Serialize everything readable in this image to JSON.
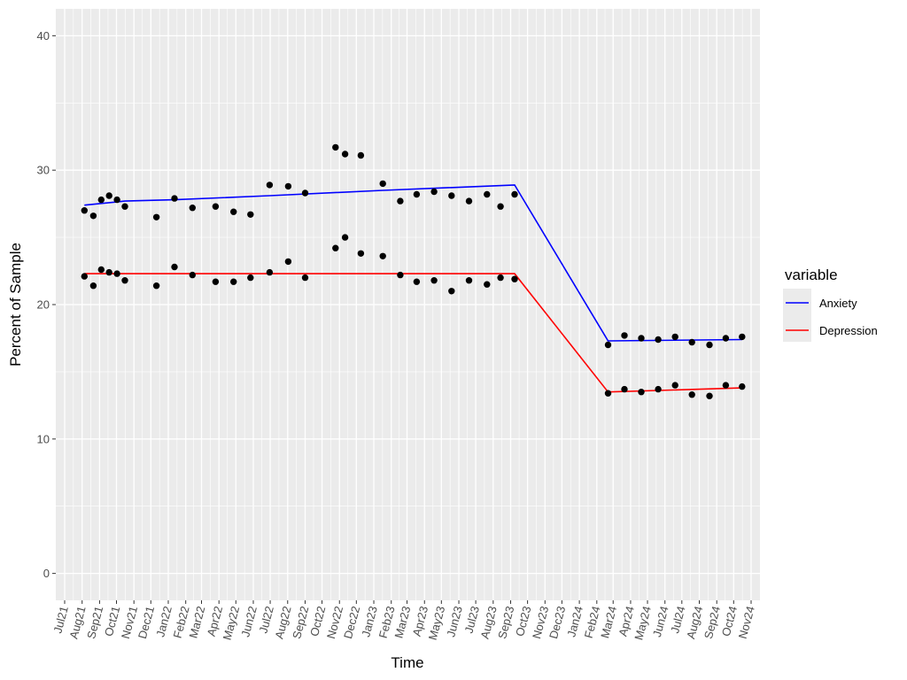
{
  "chart_data": {
    "type": "line",
    "xlabel": "Time",
    "ylabel": "Percent of Sample",
    "ylim": [
      -2,
      42
    ],
    "yticks": [
      0,
      10,
      20,
      30,
      40
    ],
    "x_tick_labels": [
      "Jul21",
      "Aug21",
      "Sep21",
      "Oct21",
      "Nov21",
      "Dec21",
      "Jan22",
      "Feb22",
      "Mar22",
      "Apr22",
      "May22",
      "Jun22",
      "Jul22",
      "Aug22",
      "Sep22",
      "Oct22",
      "Nov22",
      "Dec22",
      "Jan23",
      "Feb23",
      "Mar23",
      "Apr23",
      "May23",
      "Jun23",
      "Jul23",
      "Aug23",
      "Sep23",
      "Oct23",
      "Nov23",
      "Dec23",
      "Jan24",
      "Feb24",
      "Mar24",
      "Apr24",
      "May24",
      "Jun24",
      "Jul24",
      "Aug24",
      "Sep24",
      "Oct24",
      "Nov24"
    ],
    "grid": true,
    "legend": {
      "title": "variable",
      "placement": "right",
      "entries": [
        {
          "name": "Anxiety",
          "color": "#0000ff"
        },
        {
          "name": "Depression",
          "color": "#ff0000"
        }
      ]
    },
    "point_color": "#000000",
    "series": [
      {
        "name": "Anxiety",
        "color": "#0000ff",
        "points": [
          {
            "x": "2021-08-05",
            "y": 27.0
          },
          {
            "x": "2021-08-21",
            "y": 26.6
          },
          {
            "x": "2021-09-04",
            "y": 27.8
          },
          {
            "x": "2021-09-18",
            "y": 28.1
          },
          {
            "x": "2021-10-02",
            "y": 27.8
          },
          {
            "x": "2021-10-16",
            "y": 27.3
          },
          {
            "x": "2021-12-11",
            "y": 26.5
          },
          {
            "x": "2022-01-12",
            "y": 27.9
          },
          {
            "x": "2022-02-13",
            "y": 27.2
          },
          {
            "x": "2022-03-26",
            "y": 27.3
          },
          {
            "x": "2022-04-27",
            "y": 26.9
          },
          {
            "x": "2022-05-27",
            "y": 26.7
          },
          {
            "x": "2022-06-30",
            "y": 28.9
          },
          {
            "x": "2022-08-02",
            "y": 28.8
          },
          {
            "x": "2022-09-01",
            "y": 28.3
          },
          {
            "x": "2022-10-25",
            "y": 31.7
          },
          {
            "x": "2022-11-11",
            "y": 31.2
          },
          {
            "x": "2022-12-09",
            "y": 31.1
          },
          {
            "x": "2023-01-17",
            "y": 29.0
          },
          {
            "x": "2023-02-17",
            "y": 27.7
          },
          {
            "x": "2023-03-18",
            "y": 28.2
          },
          {
            "x": "2023-04-18",
            "y": 28.4
          },
          {
            "x": "2023-05-19",
            "y": 28.1
          },
          {
            "x": "2023-06-19",
            "y": 27.7
          },
          {
            "x": "2023-07-21",
            "y": 28.2
          },
          {
            "x": "2023-08-14",
            "y": 27.3
          },
          {
            "x": "2023-09-08",
            "y": 28.2
          },
          {
            "x": "2024-02-21",
            "y": 17.0
          },
          {
            "x": "2024-03-21",
            "y": 17.7
          },
          {
            "x": "2024-04-20",
            "y": 17.5
          },
          {
            "x": "2024-05-20",
            "y": 17.4
          },
          {
            "x": "2024-06-19",
            "y": 17.6
          },
          {
            "x": "2024-07-19",
            "y": 17.2
          },
          {
            "x": "2024-08-19",
            "y": 17.0
          },
          {
            "x": "2024-09-17",
            "y": 17.5
          },
          {
            "x": "2024-10-16",
            "y": 17.6
          }
        ],
        "trend": [
          {
            "x": "2021-08-05",
            "y": 27.4
          },
          {
            "x": "2021-10-16",
            "y": 27.7
          },
          {
            "x": "2022-01-12",
            "y": 27.8
          },
          {
            "x": "2022-06-30",
            "y": 28.1
          },
          {
            "x": "2023-01-17",
            "y": 28.5
          },
          {
            "x": "2023-09-08",
            "y": 28.9
          },
          {
            "x": "2024-02-21",
            "y": 17.3
          },
          {
            "x": "2024-10-16",
            "y": 17.4
          }
        ]
      },
      {
        "name": "Depression",
        "color": "#ff0000",
        "points": [
          {
            "x": "2021-08-05",
            "y": 22.1
          },
          {
            "x": "2021-08-21",
            "y": 21.4
          },
          {
            "x": "2021-09-04",
            "y": 22.6
          },
          {
            "x": "2021-09-18",
            "y": 22.4
          },
          {
            "x": "2021-10-02",
            "y": 22.3
          },
          {
            "x": "2021-10-16",
            "y": 21.8
          },
          {
            "x": "2021-12-11",
            "y": 21.4
          },
          {
            "x": "2022-01-12",
            "y": 22.8
          },
          {
            "x": "2022-02-13",
            "y": 22.2
          },
          {
            "x": "2022-03-26",
            "y": 21.7
          },
          {
            "x": "2022-04-27",
            "y": 21.7
          },
          {
            "x": "2022-05-27",
            "y": 22.0
          },
          {
            "x": "2022-06-30",
            "y": 22.4
          },
          {
            "x": "2022-08-02",
            "y": 23.2
          },
          {
            "x": "2022-09-01",
            "y": 22.0
          },
          {
            "x": "2022-10-25",
            "y": 24.2
          },
          {
            "x": "2022-11-11",
            "y": 25.0
          },
          {
            "x": "2022-12-09",
            "y": 23.8
          },
          {
            "x": "2023-01-17",
            "y": 23.6
          },
          {
            "x": "2023-02-17",
            "y": 22.2
          },
          {
            "x": "2023-03-18",
            "y": 21.7
          },
          {
            "x": "2023-04-18",
            "y": 21.8
          },
          {
            "x": "2023-05-19",
            "y": 21.0
          },
          {
            "x": "2023-06-19",
            "y": 21.8
          },
          {
            "x": "2023-07-21",
            "y": 21.5
          },
          {
            "x": "2023-08-14",
            "y": 22.0
          },
          {
            "x": "2023-09-08",
            "y": 21.9
          },
          {
            "x": "2024-02-21",
            "y": 13.4
          },
          {
            "x": "2024-03-21",
            "y": 13.7
          },
          {
            "x": "2024-04-20",
            "y": 13.5
          },
          {
            "x": "2024-05-20",
            "y": 13.7
          },
          {
            "x": "2024-06-19",
            "y": 14.0
          },
          {
            "x": "2024-07-19",
            "y": 13.3
          },
          {
            "x": "2024-08-19",
            "y": 13.2
          },
          {
            "x": "2024-09-17",
            "y": 14.0
          },
          {
            "x": "2024-10-16",
            "y": 13.9
          }
        ],
        "trend": [
          {
            "x": "2021-08-05",
            "y": 22.3
          },
          {
            "x": "2023-09-08",
            "y": 22.3
          },
          {
            "x": "2024-02-21",
            "y": 13.5
          },
          {
            "x": "2024-10-16",
            "y": 13.8
          }
        ]
      }
    ]
  }
}
